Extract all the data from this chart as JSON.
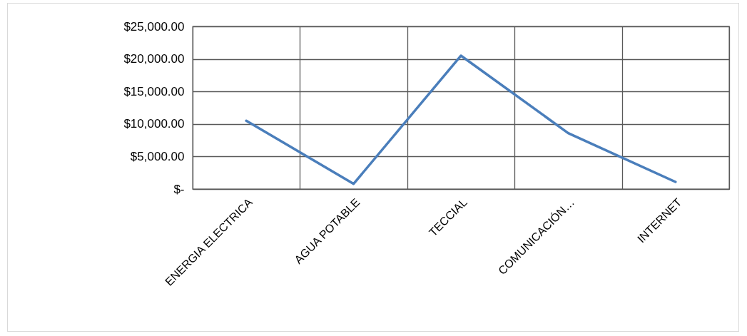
{
  "chart_data": {
    "type": "line",
    "categories": [
      "ENERGIA ELECTRICA",
      "AGUA POTABLE",
      "TECCIAL",
      "COMUNICACIÓN…",
      "INTERNET"
    ],
    "values": [
      10500,
      800,
      20500,
      8600,
      1100
    ],
    "color": "#4a7ebb",
    "ylim": [
      0,
      25000
    ],
    "yticks": [
      {
        "value": 0,
        "label": "$-"
      },
      {
        "value": 5000,
        "label": "$5,000.00"
      },
      {
        "value": 10000,
        "label": "$10,000.00"
      },
      {
        "value": 15000,
        "label": "$15,000.00"
      },
      {
        "value": 20000,
        "label": "$20,000.00"
      },
      {
        "value": 25000,
        "label": "$25,000.00"
      }
    ],
    "grid": true
  }
}
